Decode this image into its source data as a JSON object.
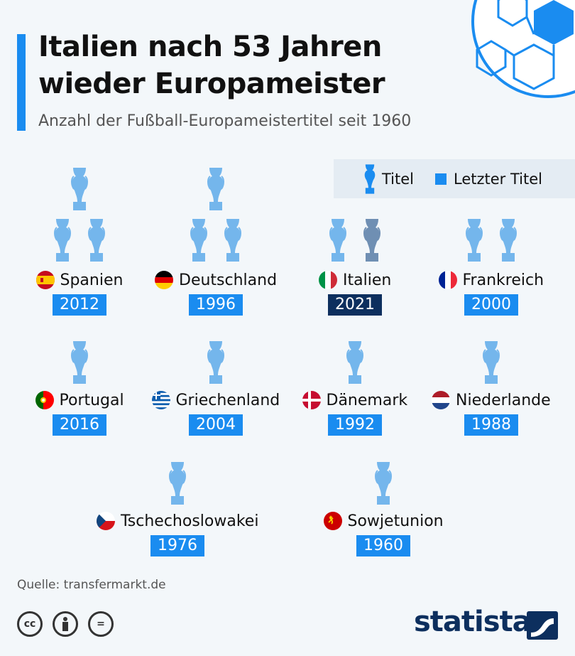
{
  "header": {
    "title_line1": "Italien nach 53 Jahren",
    "title_line2": "wieder Europameister",
    "subtitle": "Anzahl der Fußball-Europameistertitel seit 1960"
  },
  "legend": {
    "titles_label": "Titel",
    "last_title_label": "Letzter Titel"
  },
  "colors": {
    "accent": "#1a8cf0",
    "trophy": "#74b6ec",
    "trophy_highlight": "#6f8fb3",
    "dark_badge": "#0d2f5e"
  },
  "chart_data": {
    "type": "table",
    "title": "Italien nach 53 Jahren wieder Europameister",
    "subtitle": "Anzahl der Fußball-Europameistertitel seit 1960",
    "rows": [
      {
        "country": "Spanien",
        "titles": 3,
        "last_title": "2012",
        "flag": "es"
      },
      {
        "country": "Deutschland",
        "titles": 3,
        "last_title": "1996",
        "flag": "de"
      },
      {
        "country": "Italien",
        "titles": 2,
        "last_title": "2021",
        "flag": "it",
        "highlight": true
      },
      {
        "country": "Frankreich",
        "titles": 2,
        "last_title": "2000",
        "flag": "fr"
      },
      {
        "country": "Portugal",
        "titles": 1,
        "last_title": "2016",
        "flag": "pt"
      },
      {
        "country": "Griechenland",
        "titles": 1,
        "last_title": "2004",
        "flag": "gr"
      },
      {
        "country": "Dänemark",
        "titles": 1,
        "last_title": "1992",
        "flag": "dk"
      },
      {
        "country": "Niederlande",
        "titles": 1,
        "last_title": "1988",
        "flag": "nl"
      },
      {
        "country": "Tschechoslowakei",
        "titles": 1,
        "last_title": "1976",
        "flag": "cs"
      },
      {
        "country": "Sowjetunion",
        "titles": 1,
        "last_title": "1960",
        "flag": "su"
      }
    ]
  },
  "footer": {
    "source": "Quelle: transfermarkt.de",
    "cc_label": "cc",
    "eq_label": "=",
    "brand": "statista"
  }
}
